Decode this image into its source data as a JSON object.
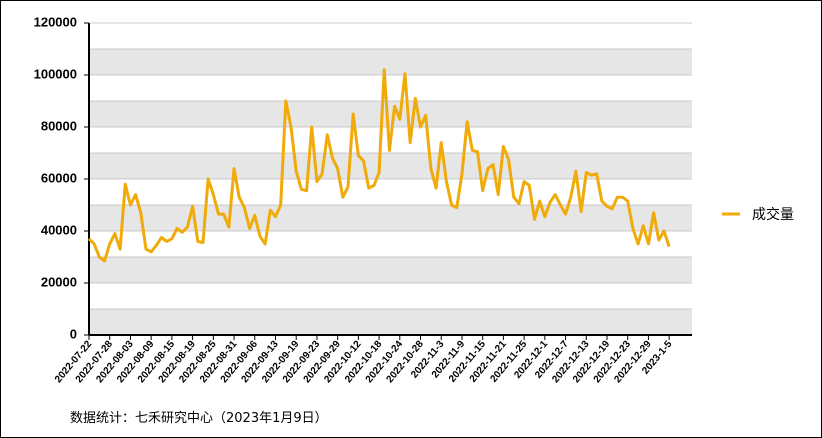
{
  "chart_data": {
    "type": "line",
    "categories": [
      "2022-07-22",
      null,
      null,
      null,
      "2022-07-28",
      null,
      null,
      null,
      "2022-08-03",
      null,
      null,
      null,
      "2022-08-09",
      null,
      null,
      null,
      "2022-08-15",
      null,
      null,
      null,
      "2022-08-19",
      null,
      null,
      null,
      "2022-08-25",
      null,
      null,
      null,
      "2022-08-31",
      null,
      null,
      null,
      "2022-09-06",
      null,
      null,
      null,
      "2022-09-13",
      null,
      null,
      null,
      "2022-09-19",
      null,
      null,
      null,
      "2022-09-23",
      null,
      null,
      null,
      "2022-09-29",
      null,
      null,
      null,
      "2022-10-12",
      null,
      null,
      null,
      "2022-10-18",
      null,
      null,
      null,
      "2022-10-24",
      null,
      null,
      null,
      "2022-10-28",
      null,
      null,
      null,
      "2022-11-3",
      null,
      null,
      null,
      "2022-11-9",
      null,
      null,
      null,
      "2022-11-15",
      null,
      null,
      null,
      "2022-11-21",
      null,
      null,
      null,
      "2022-11-25",
      null,
      null,
      null,
      "2022-12-1",
      null,
      null,
      null,
      "2022-12-7",
      null,
      null,
      null,
      "2022-12-13",
      null,
      null,
      null,
      "2022-12-19",
      null,
      null,
      null,
      "2022-12-23",
      null,
      null,
      null,
      "2022-12-29",
      null,
      null,
      null,
      "2023-1-5"
    ],
    "series": [
      {
        "name": "成交量",
        "color": "#f0aa0a",
        "values": [
          37000,
          35000,
          30000,
          28500,
          35000,
          39000,
          33000,
          58000,
          50000,
          54000,
          47000,
          33000,
          32000,
          34500,
          37500,
          36000,
          37000,
          41000,
          39500,
          41500,
          49500,
          36000,
          35500,
          60000,
          54000,
          46500,
          46500,
          41500,
          64000,
          53000,
          49000,
          41000,
          46000,
          38000,
          35000,
          48000,
          45500,
          50000,
          90000,
          80000,
          63000,
          56000,
          55500,
          80000,
          59000,
          62000,
          77000,
          68000,
          64000,
          53000,
          57000,
          85000,
          69000,
          67000,
          56500,
          57500,
          62500,
          102000,
          71000,
          88000,
          83000,
          100500,
          74000,
          91000,
          80000,
          84500,
          64000,
          56500,
          74000,
          59000,
          50000,
          49000,
          62000,
          82000,
          71000,
          70500,
          55500,
          64000,
          65500,
          54000,
          72500,
          67500,
          53000,
          50500,
          59000,
          57500,
          44500,
          51500,
          45500,
          51000,
          54000,
          50000,
          46500,
          53000,
          63000,
          47500,
          62500,
          61500,
          62000,
          51500,
          49500,
          48500,
          53000,
          53000,
          51500,
          41000,
          35000,
          42000,
          35000,
          47000,
          36500,
          40000,
          34000
        ]
      }
    ],
    "ylim": [
      0,
      120000
    ],
    "yticks": [
      0,
      20000,
      40000,
      60000,
      80000,
      100000,
      120000
    ],
    "grid": true,
    "legend": "right",
    "source": "数据统计：七禾研究中心（2023年1月9日）"
  }
}
